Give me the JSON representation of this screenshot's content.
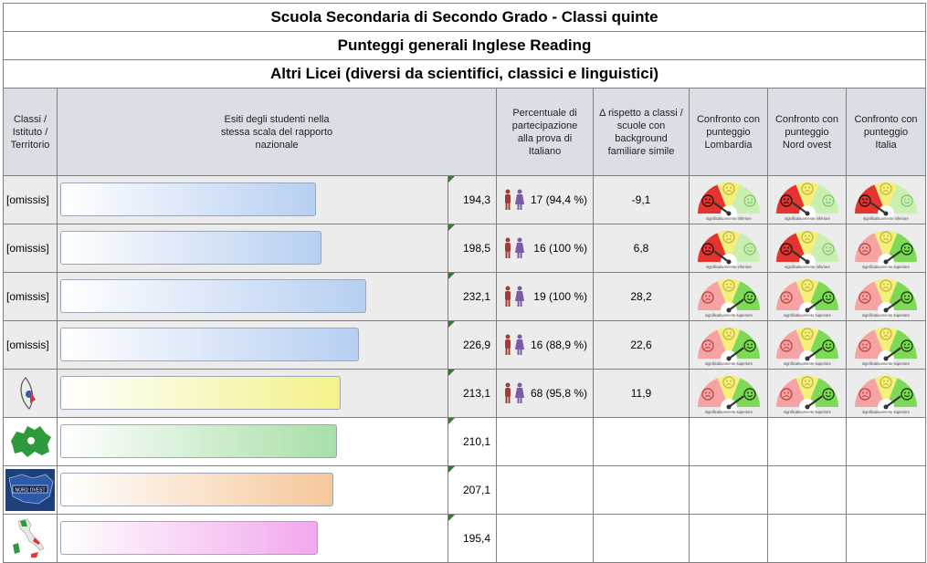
{
  "titles": {
    "line1": "Scuola Secondaria di Secondo Grado - Classi quinte",
    "line2": "Punteggi generali Inglese Reading",
    "line3": "Altri Licei (diversi da scientifici, classici e linguistici)"
  },
  "headers": {
    "classi": "Classi / Istituto / Territorio",
    "esiti": "Esiti degli studenti nella stessa scala del rapporto nazionale",
    "percentuale": "Percentuale di partecipazione alla prova di Italiano",
    "delta": "Δ rispetto a classi / scuole con background familiare simile",
    "lombardia": "Confronto con punteggio Lombardia",
    "nordovest": "Confronto con punteggio Nord ovest",
    "italia": "Confronto con punteggio Italia"
  },
  "gauge_captions": {
    "inferiore": "significativamente inferiore",
    "superiore": "significativamente superiore"
  },
  "territory_icon_labels": {
    "nordovest": "NORD OVEST"
  },
  "rows": [
    {
      "label": "[omissis]",
      "score": "194,3",
      "participation": "17 (94,4 %)",
      "delta": "-9,1",
      "bar": 194.3,
      "bar_color": "#b7cff2",
      "comparisons": [
        "inferiore",
        "inferiore",
        "inferiore"
      ]
    },
    {
      "label": "[omissis]",
      "score": "198,5",
      "participation": "16 (100 %)",
      "delta": "6,8",
      "bar": 198.5,
      "bar_color": "#b7cff2",
      "comparisons": [
        "inferiore",
        "inferiore",
        "superiore"
      ]
    },
    {
      "label": "[omissis]",
      "score": "232,1",
      "participation": "19 (100 %)",
      "delta": "28,2",
      "bar": 232.1,
      "bar_color": "#b7cff2",
      "comparisons": [
        "superiore",
        "superiore",
        "superiore"
      ]
    },
    {
      "label": "[omissis]",
      "score": "226,9",
      "participation": "16 (88,9 %)",
      "delta": "22,6",
      "bar": 226.9,
      "bar_color": "#b7cff2",
      "comparisons": [
        "superiore",
        "superiore",
        "superiore"
      ]
    },
    {
      "label": "",
      "icon": "school-emblem-icon",
      "score": "213,1",
      "participation": "68 (95,8 %)",
      "delta": "11,9",
      "bar": 213.1,
      "bar_color": "#f4f28a",
      "comparisons": [
        "superiore",
        "superiore",
        "superiore"
      ]
    },
    {
      "label": "",
      "icon": "lombardia-map-icon",
      "score": "210,1",
      "bar": 210.1,
      "bar_color": "#a8dfa8"
    },
    {
      "label": "",
      "icon": "nord-ovest-map-icon",
      "score": "207,1",
      "bar": 207.1,
      "bar_color": "#f7c79a"
    },
    {
      "label": "",
      "icon": "italia-map-icon",
      "score": "195,4",
      "bar": 195.4,
      "bar_color": "#f2a8ee"
    }
  ],
  "scale": {
    "max": 290
  },
  "colors": {
    "gauge_red": "#e3342f",
    "gauge_pink": "#f5a3a3",
    "gauge_yellow": "#f4f07a",
    "gauge_green": "#7ed957",
    "light_green": "#c9f0b0"
  }
}
